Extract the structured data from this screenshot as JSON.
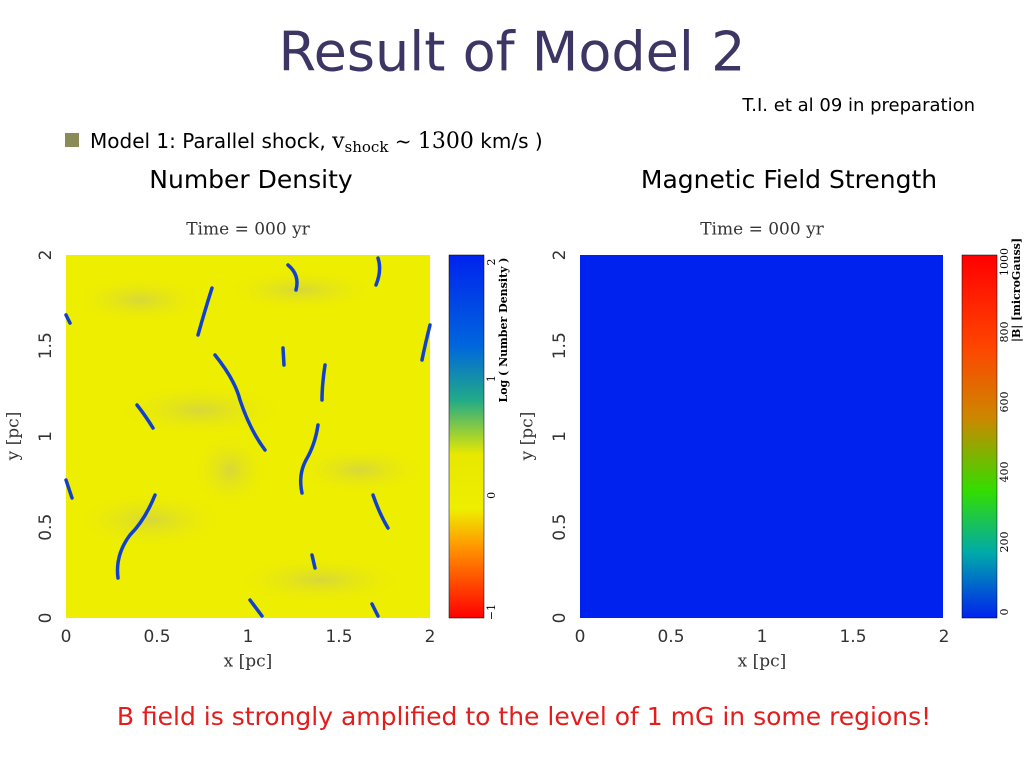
{
  "title": "Result of Model 2",
  "citation": "T.I. et al 09 in preparation",
  "bullet": {
    "prefix": "Model 1: Parallel shock, ",
    "v": "v",
    "subscript": "shock",
    "approx": " ~ ",
    "speed": "1300",
    "unit": " km/s",
    "close": " )"
  },
  "panels": [
    {
      "heading": "Number Density",
      "time": "Time =  000 yr",
      "xlabel": "x [pc]",
      "ylabel": "y [pc]",
      "xticks": [
        "0",
        "0.5",
        "1",
        "1.5",
        "2"
      ],
      "yticks": [
        "0",
        "0.5",
        "1",
        "1.5",
        "2"
      ],
      "colorbar_label": "Log ( Number Density )",
      "colorbar_ticks": [
        "2",
        "1",
        "0",
        "−1"
      ]
    },
    {
      "heading": "Magnetic Field Strength",
      "time": "Time =  000 yr",
      "xlabel": "x [pc]",
      "ylabel": "y [pc]",
      "xticks": [
        "0",
        "0.5",
        "1",
        "1.5",
        "2"
      ],
      "yticks": [
        "0",
        "0.5",
        "1",
        "1.5",
        "2"
      ],
      "colorbar_label": "|B| [microGauss]",
      "colorbar_ticks": [
        "1000",
        "800",
        "600",
        "400",
        "200",
        "0"
      ]
    }
  ],
  "footer": "B field is strongly amplified to the level of 1 mG in some regions!"
}
